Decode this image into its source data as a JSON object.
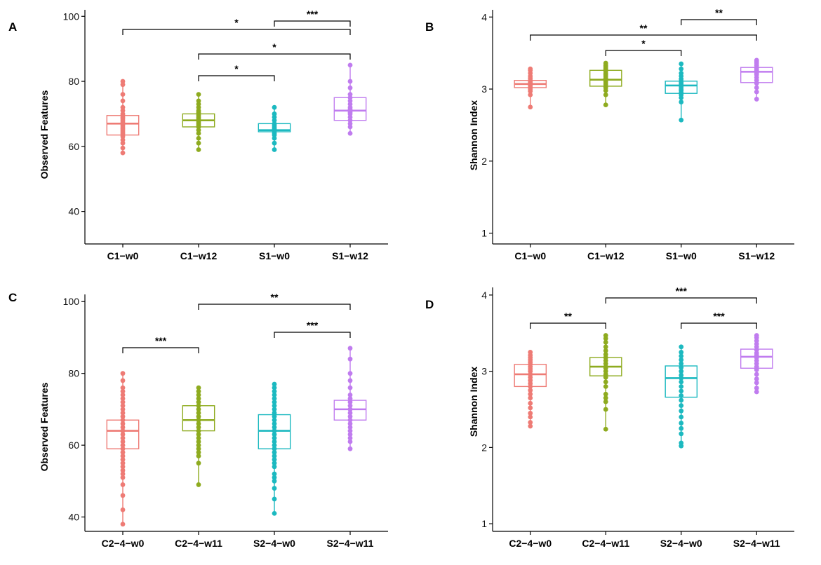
{
  "colors": {
    "C1-w0": "#ee7b75",
    "C1-w12": "#8eab1f",
    "S1-w0": "#1cb9c0",
    "S1-w12": "#c07cef",
    "C2-4-w0": "#ee7b75",
    "C2-4-w11": "#8eab1f",
    "S2-4-w0": "#1cb9c0",
    "S2-4-w11": "#c07cef"
  },
  "chart_data": [
    {
      "panel": "A",
      "type": "box",
      "ylabel": "Observed Features",
      "ylim": [
        30,
        102
      ],
      "yticks": [
        40,
        60,
        80,
        100
      ],
      "categories": [
        "C1−w0",
        "C1−w12",
        "S1−w0",
        "S1−w12"
      ],
      "color_keys": [
        "C1-w0",
        "C1-w12",
        "S1-w0",
        "S1-w12"
      ],
      "boxes": [
        {
          "q1": 63.5,
          "median": 67,
          "q3": 69.5,
          "min": 58,
          "max": 80,
          "points": [
            58,
            59.5,
            61,
            62,
            63,
            63.5,
            64,
            64.5,
            65,
            65.5,
            66,
            66.5,
            67,
            67,
            67.5,
            68,
            68.5,
            69,
            69.5,
            70,
            71,
            72,
            74,
            76,
            79,
            80
          ]
        },
        {
          "q1": 66,
          "median": 68,
          "q3": 70,
          "min": 59,
          "max": 76,
          "points": [
            59,
            61,
            62.5,
            64,
            65,
            66,
            66.5,
            67,
            67.5,
            68,
            68,
            68.5,
            69,
            69.5,
            70,
            70.5,
            71,
            72,
            73,
            74,
            76
          ]
        },
        {
          "q1": 64.5,
          "median": 65,
          "q3": 67,
          "min": 59,
          "max": 72,
          "points": [
            59,
            61,
            62.5,
            63.5,
            64,
            64.5,
            65,
            65,
            65.5,
            66,
            66.5,
            67,
            68,
            69,
            70,
            72
          ]
        },
        {
          "q1": 68,
          "median": 71,
          "q3": 75,
          "min": 64,
          "max": 85,
          "points": [
            64,
            66,
            67,
            68,
            69,
            70,
            70.5,
            71,
            71.5,
            72,
            73,
            74,
            75,
            76,
            78,
            80,
            85
          ]
        }
      ],
      "brackets": [
        {
          "from": 2,
          "to": 3,
          "label": "***"
        },
        {
          "from": 0,
          "to": 3,
          "label": "*"
        },
        {
          "from": 1,
          "to": 3,
          "label": "*"
        },
        {
          "from": 1,
          "to": 2,
          "label": "*"
        }
      ]
    },
    {
      "panel": "B",
      "type": "box",
      "ylabel": "Shannon Index",
      "ylim": [
        0.85,
        4.1
      ],
      "yticks": [
        1,
        2,
        3,
        4
      ],
      "categories": [
        "C1−w0",
        "C1−w12",
        "S1−w0",
        "S1−w12"
      ],
      "color_keys": [
        "C1-w0",
        "C1-w12",
        "S1-w0",
        "S1-w12"
      ],
      "boxes": [
        {
          "q1": 3.02,
          "median": 3.07,
          "q3": 3.12,
          "min": 2.75,
          "max": 3.28,
          "points": [
            2.75,
            2.92,
            2.97,
            3.0,
            3.02,
            3.04,
            3.05,
            3.06,
            3.07,
            3.08,
            3.09,
            3.1,
            3.12,
            3.15,
            3.18,
            3.22,
            3.26,
            3.28
          ]
        },
        {
          "q1": 3.04,
          "median": 3.13,
          "q3": 3.26,
          "min": 2.78,
          "max": 3.36,
          "points": [
            2.78,
            2.92,
            2.98,
            3.02,
            3.04,
            3.07,
            3.1,
            3.13,
            3.15,
            3.18,
            3.2,
            3.22,
            3.25,
            3.27,
            3.29,
            3.31,
            3.33,
            3.36
          ]
        },
        {
          "q1": 2.94,
          "median": 3.05,
          "q3": 3.11,
          "min": 2.57,
          "max": 3.35,
          "points": [
            2.57,
            2.82,
            2.88,
            2.92,
            2.95,
            2.98,
            3.0,
            3.03,
            3.05,
            3.07,
            3.09,
            3.11,
            3.14,
            3.18,
            3.22,
            3.28,
            3.35
          ]
        },
        {
          "q1": 3.09,
          "median": 3.24,
          "q3": 3.3,
          "min": 2.86,
          "max": 3.4,
          "points": [
            2.86,
            2.96,
            3.02,
            3.08,
            3.12,
            3.16,
            3.2,
            3.22,
            3.24,
            3.26,
            3.28,
            3.3,
            3.33,
            3.36,
            3.38,
            3.4
          ]
        }
      ],
      "brackets": [
        {
          "from": 2,
          "to": 3,
          "label": "**"
        },
        {
          "from": 0,
          "to": 3,
          "label": "**"
        },
        {
          "from": 1,
          "to": 2,
          "label": "*"
        }
      ]
    },
    {
      "panel": "C",
      "type": "box",
      "ylabel": "Observed Features",
      "ylim": [
        36,
        102
      ],
      "yticks": [
        40,
        60,
        80,
        100
      ],
      "categories": [
        "C2−4−w0",
        "C2−4−w11",
        "S2−4−w0",
        "S2−4−w11"
      ],
      "color_keys": [
        "C2-4-w0",
        "C2-4-w11",
        "S2-4-w0",
        "S2-4-w11"
      ],
      "boxes": [
        {
          "q1": 59,
          "median": 64,
          "q3": 67,
          "min": 38,
          "max": 80,
          "points": [
            38,
            42,
            46,
            49,
            51,
            52,
            53,
            54,
            55,
            56,
            57,
            58,
            59,
            60,
            61,
            62,
            63,
            64,
            64,
            65,
            66,
            67,
            68,
            69,
            70,
            71,
            72,
            73,
            74,
            75,
            76,
            78,
            80
          ]
        },
        {
          "q1": 64,
          "median": 67,
          "q3": 71,
          "min": 49,
          "max": 76,
          "points": [
            49,
            55,
            57,
            58,
            59,
            60,
            61,
            62,
            63,
            64,
            65,
            66,
            67,
            67,
            68,
            69,
            70,
            71,
            72,
            73,
            74,
            75,
            76
          ]
        },
        {
          "q1": 59,
          "median": 64,
          "q3": 68.5,
          "min": 41,
          "max": 77,
          "points": [
            41,
            45,
            48,
            50,
            51,
            52,
            54,
            55,
            56,
            57,
            58,
            59,
            60,
            61,
            62,
            63,
            64,
            64,
            65,
            66,
            67,
            68,
            69,
            70,
            71,
            72,
            73,
            74,
            75,
            76,
            77
          ]
        },
        {
          "q1": 67,
          "median": 70,
          "q3": 72.5,
          "min": 59,
          "max": 87,
          "points": [
            59,
            61,
            62,
            63,
            64,
            65,
            66,
            67,
            68,
            69,
            70,
            70,
            71,
            72,
            73,
            74,
            76,
            78,
            80,
            84,
            87
          ]
        }
      ],
      "brackets": [
        {
          "from": 1,
          "to": 3,
          "label": "**"
        },
        {
          "from": 2,
          "to": 3,
          "label": "***"
        },
        {
          "from": 0,
          "to": 1,
          "label": "***"
        }
      ]
    },
    {
      "panel": "D",
      "type": "box",
      "ylabel": "Shannon Index",
      "ylim": [
        0.9,
        4.1
      ],
      "yticks": [
        1,
        2,
        3,
        4
      ],
      "categories": [
        "C2−4−w0",
        "C2−4−w11",
        "S2−4−w0",
        "S2−4−w11"
      ],
      "color_keys": [
        "C2-4-w0",
        "C2-4-w11",
        "S2-4-w0",
        "S2-4-w11"
      ],
      "boxes": [
        {
          "q1": 2.8,
          "median": 2.96,
          "q3": 3.09,
          "min": 2.28,
          "max": 3.25,
          "points": [
            2.28,
            2.33,
            2.4,
            2.45,
            2.52,
            2.58,
            2.65,
            2.7,
            2.75,
            2.8,
            2.84,
            2.88,
            2.92,
            2.96,
            3.0,
            3.03,
            3.06,
            3.09,
            3.12,
            3.15,
            3.18,
            3.21,
            3.25
          ]
        },
        {
          "q1": 2.94,
          "median": 3.06,
          "q3": 3.18,
          "min": 2.24,
          "max": 3.47,
          "points": [
            2.24,
            2.5,
            2.6,
            2.65,
            2.7,
            2.8,
            2.86,
            2.92,
            2.96,
            3.0,
            3.04,
            3.06,
            3.1,
            3.14,
            3.18,
            3.22,
            3.27,
            3.32,
            3.38,
            3.43,
            3.47
          ]
        },
        {
          "q1": 2.66,
          "median": 2.91,
          "q3": 3.07,
          "min": 2.02,
          "max": 3.32,
          "points": [
            2.02,
            2.06,
            2.18,
            2.25,
            2.32,
            2.4,
            2.48,
            2.55,
            2.62,
            2.68,
            2.74,
            2.8,
            2.86,
            2.91,
            2.95,
            3.0,
            3.05,
            3.1,
            3.15,
            3.2,
            3.25,
            3.32
          ]
        },
        {
          "q1": 3.04,
          "median": 3.19,
          "q3": 3.29,
          "min": 2.73,
          "max": 3.47,
          "points": [
            2.73,
            2.78,
            2.85,
            2.9,
            2.96,
            3.02,
            3.06,
            3.1,
            3.14,
            3.18,
            3.21,
            3.24,
            3.28,
            3.32,
            3.36,
            3.4,
            3.44,
            3.47
          ]
        }
      ],
      "brackets": [
        {
          "from": 1,
          "to": 3,
          "label": "***"
        },
        {
          "from": 0,
          "to": 1,
          "label": "**"
        },
        {
          "from": 2,
          "to": 3,
          "label": "***"
        }
      ]
    }
  ]
}
